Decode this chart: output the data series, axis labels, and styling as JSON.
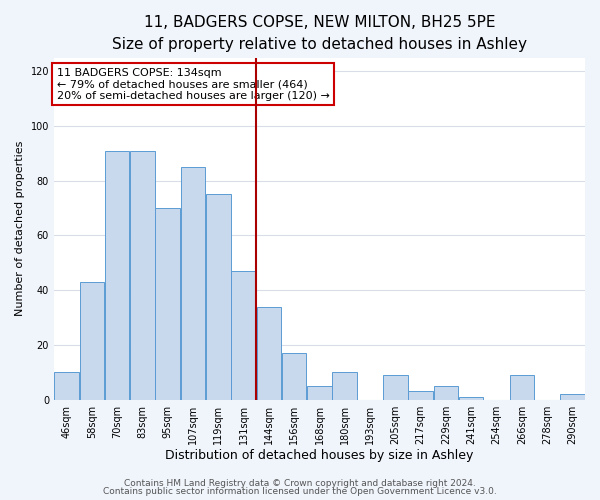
{
  "title": "11, BADGERS COPSE, NEW MILTON, BH25 5PE",
  "subtitle": "Size of property relative to detached houses in Ashley",
  "xlabel": "Distribution of detached houses by size in Ashley",
  "ylabel": "Number of detached properties",
  "bar_labels": [
    "46sqm",
    "58sqm",
    "70sqm",
    "83sqm",
    "95sqm",
    "107sqm",
    "119sqm",
    "131sqm",
    "144sqm",
    "156sqm",
    "168sqm",
    "180sqm",
    "193sqm",
    "205sqm",
    "217sqm",
    "229sqm",
    "241sqm",
    "254sqm",
    "266sqm",
    "278sqm",
    "290sqm"
  ],
  "bar_values": [
    10,
    43,
    91,
    91,
    70,
    85,
    75,
    47,
    34,
    17,
    5,
    10,
    0,
    9,
    3,
    5,
    1,
    0,
    9,
    0,
    2
  ],
  "bar_color": "#c8d9ed",
  "bar_edge_color": "#5b9bd5",
  "vline_x_index": 7,
  "vline_color": "#aa0000",
  "ylim": [
    0,
    125
  ],
  "yticks": [
    0,
    20,
    40,
    60,
    80,
    100,
    120
  ],
  "annotation_title": "11 BADGERS COPSE: 134sqm",
  "annotation_line1": "← 79% of detached houses are smaller (464)",
  "annotation_line2": "20% of semi-detached houses are larger (120) →",
  "annotation_box_color": "#ffffff",
  "annotation_box_edge_color": "#cc0000",
  "footer_line1": "Contains HM Land Registry data © Crown copyright and database right 2024.",
  "footer_line2": "Contains public sector information licensed under the Open Government Licence v3.0.",
  "background_color": "#f0f4fb",
  "plot_background_color": "#ffffff",
  "grid_color": "#d8dde8",
  "title_fontsize": 11,
  "subtitle_fontsize": 9.5,
  "xlabel_fontsize": 9,
  "ylabel_fontsize": 8,
  "tick_fontsize": 7,
  "footer_fontsize": 6.5,
  "annotation_fontsize": 8
}
